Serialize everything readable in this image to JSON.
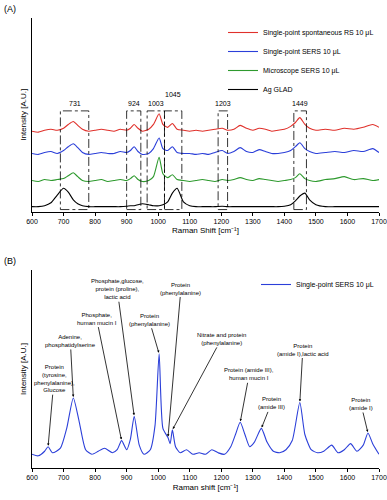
{
  "chart_data": [
    {
      "type": "line",
      "title": "(A)",
      "x_label": "Raman Shift [cm⁻¹]",
      "y_label": "Intensity [A.U.]",
      "x": [
        600,
        620,
        640,
        660,
        680,
        700,
        715,
        731,
        745,
        760,
        780,
        800,
        820,
        840,
        860,
        880,
        900,
        912,
        924,
        936,
        950,
        970,
        985,
        1003,
        1015,
        1030,
        1045,
        1060,
        1080,
        1100,
        1120,
        1140,
        1160,
        1180,
        1203,
        1220,
        1240,
        1260,
        1280,
        1300,
        1320,
        1340,
        1360,
        1380,
        1400,
        1420,
        1435,
        1449,
        1465,
        1480,
        1500,
        1530,
        1560,
        1590,
        1620,
        1650,
        1680,
        1700
      ],
      "series": [
        {
          "name": "Single-point spontaneous RS 10 μL",
          "color": "#e0312b",
          "values": [
            8.3,
            8.2,
            8.4,
            8.5,
            8.4,
            8.6,
            9.0,
            9.3,
            8.9,
            8.5,
            8.3,
            8.4,
            8.5,
            8.4,
            8.3,
            8.5,
            8.4,
            8.6,
            9.0,
            8.6,
            8.3,
            8.5,
            9.0,
            10.1,
            9.0,
            8.7,
            9.1,
            8.5,
            8.4,
            8.3,
            8.4,
            8.3,
            8.4,
            8.5,
            8.6,
            8.4,
            8.5,
            8.9,
            8.6,
            8.4,
            8.6,
            8.5,
            8.3,
            8.4,
            8.5,
            8.8,
            9.2,
            9.7,
            9.0,
            8.6,
            8.4,
            8.5,
            8.4,
            8.6,
            8.5,
            8.7,
            9.0,
            8.7
          ]
        },
        {
          "name": "Single-point SERS 10 μL",
          "color": "#2b3fd9",
          "values": [
            6.0,
            5.9,
            6.1,
            6.2,
            6.0,
            6.3,
            6.7,
            7.0,
            6.6,
            6.1,
            5.9,
            6.0,
            6.1,
            6.0,
            6.0,
            6.2,
            6.1,
            6.3,
            6.7,
            6.2,
            5.9,
            6.0,
            6.5,
            7.6,
            6.5,
            6.3,
            6.7,
            6.1,
            6.0,
            6.0,
            5.9,
            6.0,
            5.9,
            6.1,
            6.3,
            6.0,
            6.2,
            6.6,
            6.2,
            6.1,
            6.4,
            6.2,
            6.0,
            6.0,
            6.1,
            6.3,
            6.7,
            7.1,
            6.5,
            6.2,
            6.0,
            6.1,
            6.2,
            6.1,
            6.3,
            6.2,
            6.5,
            6.1
          ]
        },
        {
          "name": "Microscope SERS 10 μL",
          "color": "#2e9a2e",
          "values": [
            3.2,
            3.1,
            3.3,
            3.2,
            3.3,
            3.4,
            3.7,
            4.0,
            3.6,
            3.2,
            3.1,
            3.2,
            3.3,
            3.1,
            3.2,
            3.3,
            3.2,
            3.4,
            3.7,
            3.3,
            3.1,
            3.2,
            3.6,
            5.6,
            3.9,
            3.5,
            3.8,
            3.3,
            3.2,
            3.1,
            3.2,
            3.3,
            3.2,
            3.1,
            3.3,
            3.2,
            3.3,
            3.5,
            3.3,
            3.2,
            3.4,
            3.3,
            3.2,
            3.1,
            3.2,
            3.3,
            3.5,
            3.9,
            3.4,
            3.2,
            3.1,
            3.3,
            3.4,
            3.6,
            3.3,
            3.4,
            3.2,
            3.3
          ]
        },
        {
          "name": "Ag GLAD",
          "color": "#000000",
          "values": [
            0.5,
            0.5,
            0.6,
            0.9,
            1.7,
            2.4,
            2.0,
            1.2,
            0.8,
            0.6,
            0.5,
            0.5,
            0.5,
            0.5,
            0.5,
            0.5,
            0.55,
            0.6,
            0.6,
            0.7,
            0.8,
            0.7,
            0.6,
            0.6,
            0.7,
            1.0,
            1.9,
            2.4,
            1.0,
            0.6,
            0.5,
            0.5,
            0.5,
            0.5,
            0.55,
            0.5,
            0.5,
            0.5,
            0.5,
            0.5,
            0.5,
            0.5,
            0.5,
            0.5,
            0.55,
            0.7,
            1.1,
            1.6,
            1.9,
            1.2,
            0.7,
            0.5,
            0.5,
            0.5,
            0.5,
            0.5,
            0.5,
            0.5
          ]
        }
      ],
      "xlim": [
        600,
        1700
      ],
      "xticks": [
        600,
        700,
        800,
        900,
        1000,
        1100,
        1200,
        1300,
        1400,
        1500,
        1600,
        1700
      ],
      "ylim": [
        0,
        20
      ],
      "tick_labels": "x",
      "legend": "top right",
      "annotations": [
        {
          "text": "731",
          "x0": 690,
          "x1": 780
        },
        {
          "text": "924",
          "x0": 900,
          "x1": 945
        },
        {
          "text": "1003",
          "x0": 965,
          "x1": 1020
        },
        {
          "text": "1045",
          "x0": 1020,
          "x1": 1075
        },
        {
          "text": "1203",
          "x0": 1190,
          "x1": 1220
        },
        {
          "text": "1449",
          "x0": 1430,
          "x1": 1470
        }
      ]
    },
    {
      "type": "line",
      "title": "(B)",
      "x_label": "Raman shift [cm⁻¹]",
      "y_label": "Intensity [A.U.]",
      "x": [
        600,
        620,
        640,
        651,
        665,
        690,
        710,
        731,
        750,
        770,
        790,
        810,
        830,
        855,
        870,
        884,
        900,
        912,
        924,
        940,
        955,
        975,
        990,
        1003,
        1015,
        1031,
        1038,
        1045,
        1055,
        1070,
        1090,
        1110,
        1130,
        1150,
        1170,
        1190,
        1210,
        1230,
        1245,
        1260,
        1275,
        1290,
        1305,
        1327,
        1345,
        1365,
        1385,
        1405,
        1425,
        1449,
        1465,
        1485,
        1505,
        1525,
        1550,
        1570,
        1590,
        1610,
        1630,
        1650,
        1665,
        1680,
        1700
      ],
      "series": [
        {
          "name": "Single-point SERS 10 μL",
          "color": "#2b3fd9",
          "values": [
            0.9,
            0.8,
            1.1,
            1.4,
            1.0,
            1.3,
            2.6,
            4.6,
            3.0,
            1.2,
            0.9,
            1.1,
            1.3,
            1.0,
            1.2,
            1.8,
            1.2,
            1.9,
            3.4,
            1.5,
            0.9,
            1.2,
            2.8,
            7.5,
            2.6,
            2.0,
            1.6,
            2.5,
            1.4,
            1.0,
            1.2,
            0.9,
            1.0,
            0.9,
            1.2,
            1.0,
            0.9,
            1.4,
            2.2,
            3.0,
            2.2,
            1.4,
            1.7,
            2.6,
            1.7,
            1.1,
            1.0,
            1.2,
            1.8,
            4.3,
            2.2,
            1.2,
            1.0,
            1.1,
            1.5,
            1.0,
            1.2,
            1.6,
            1.1,
            1.5,
            2.3,
            1.6,
            0.9
          ]
        }
      ],
      "xlim": [
        600,
        1700
      ],
      "xticks": [
        600,
        700,
        800,
        900,
        1000,
        1100,
        1200,
        1300,
        1400,
        1500,
        1600,
        1700
      ],
      "ylim": [
        0,
        13
      ],
      "tick_labels": "x",
      "legend": "top right",
      "annotations": [
        {
          "text": "Protein\n(tyrosine,\nphenylalanine),\nGlucose",
          "x": 651
        },
        {
          "text": "Adenine,\nphosphatidylserine",
          "x": 731
        },
        {
          "text": "Phosphate,\nhuman mucin I",
          "x": 884
        },
        {
          "text": "Phosphate,glucose,\nprotein (proline),\nlactic acid",
          "x": 924
        },
        {
          "text": "Protein\n(phenylalanine)",
          "x": 1003
        },
        {
          "text": "Protein\n(phenylalanine)",
          "x": 1031
        },
        {
          "text": "Nitrate and protein\n(phenylalanine)",
          "x": 1045
        },
        {
          "text": "Protein (amide III),\nhuman mucin I",
          "x": 1260
        },
        {
          "text": "Protein\n(amide III)",
          "x": 1327
        },
        {
          "text": "Protein\n(amide I),lactic acid",
          "x": 1449
        },
        {
          "text": "Protein\n(amide I)",
          "x": 1665
        }
      ]
    }
  ]
}
